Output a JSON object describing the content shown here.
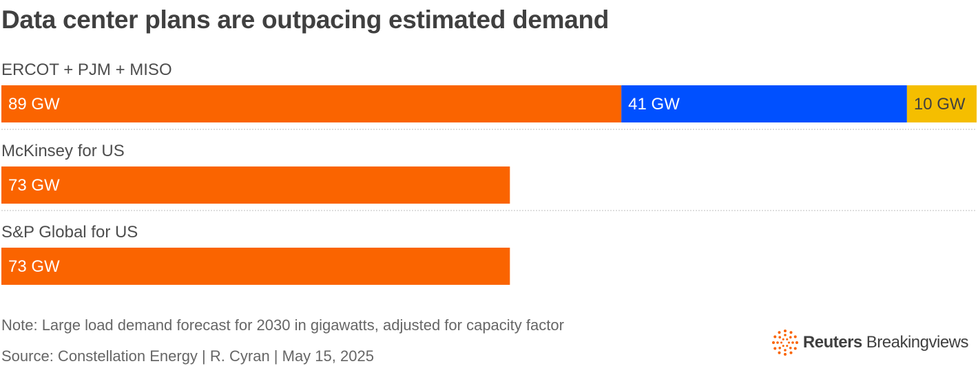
{
  "title": "Data center plans are outpacing estimated demand",
  "chart_data": {
    "type": "bar",
    "orientation": "horizontal",
    "stacked": true,
    "title": "Data center plans are outpacing estimated demand",
    "unit": "GW",
    "xlim": [
      0,
      140
    ],
    "categories": [
      "ERCOT + PJM + MISO",
      "McKinsey for US",
      "S&P Global for US"
    ],
    "rows": [
      {
        "label": "ERCOT + PJM + MISO",
        "segments": [
          {
            "value": 89,
            "text": "89 GW",
            "color": "#fa6400",
            "text_color": "#ffffff"
          },
          {
            "value": 41,
            "text": "41 GW",
            "color": "#0050ff",
            "text_color": "#ffffff"
          },
          {
            "value": 10,
            "text": "10 GW",
            "color": "#f5be00",
            "text_color": "#404040"
          }
        ]
      },
      {
        "label": "McKinsey for US",
        "segments": [
          {
            "value": 73,
            "text": "73 GW",
            "color": "#fa6400",
            "text_color": "#ffffff"
          }
        ]
      },
      {
        "label": "S&P Global for US",
        "segments": [
          {
            "value": 73,
            "text": "73 GW",
            "color": "#fa6400",
            "text_color": "#ffffff"
          }
        ]
      }
    ]
  },
  "footer": {
    "note": "Note: Large load demand forecast for 2030 in gigawatts, adjusted for capacity factor",
    "source": "Source: Constellation Energy | R. Cyran | May 15, 2025"
  },
  "logo": {
    "brand": "Reuters",
    "sub": "Breakingviews",
    "color": "#fa6400"
  }
}
